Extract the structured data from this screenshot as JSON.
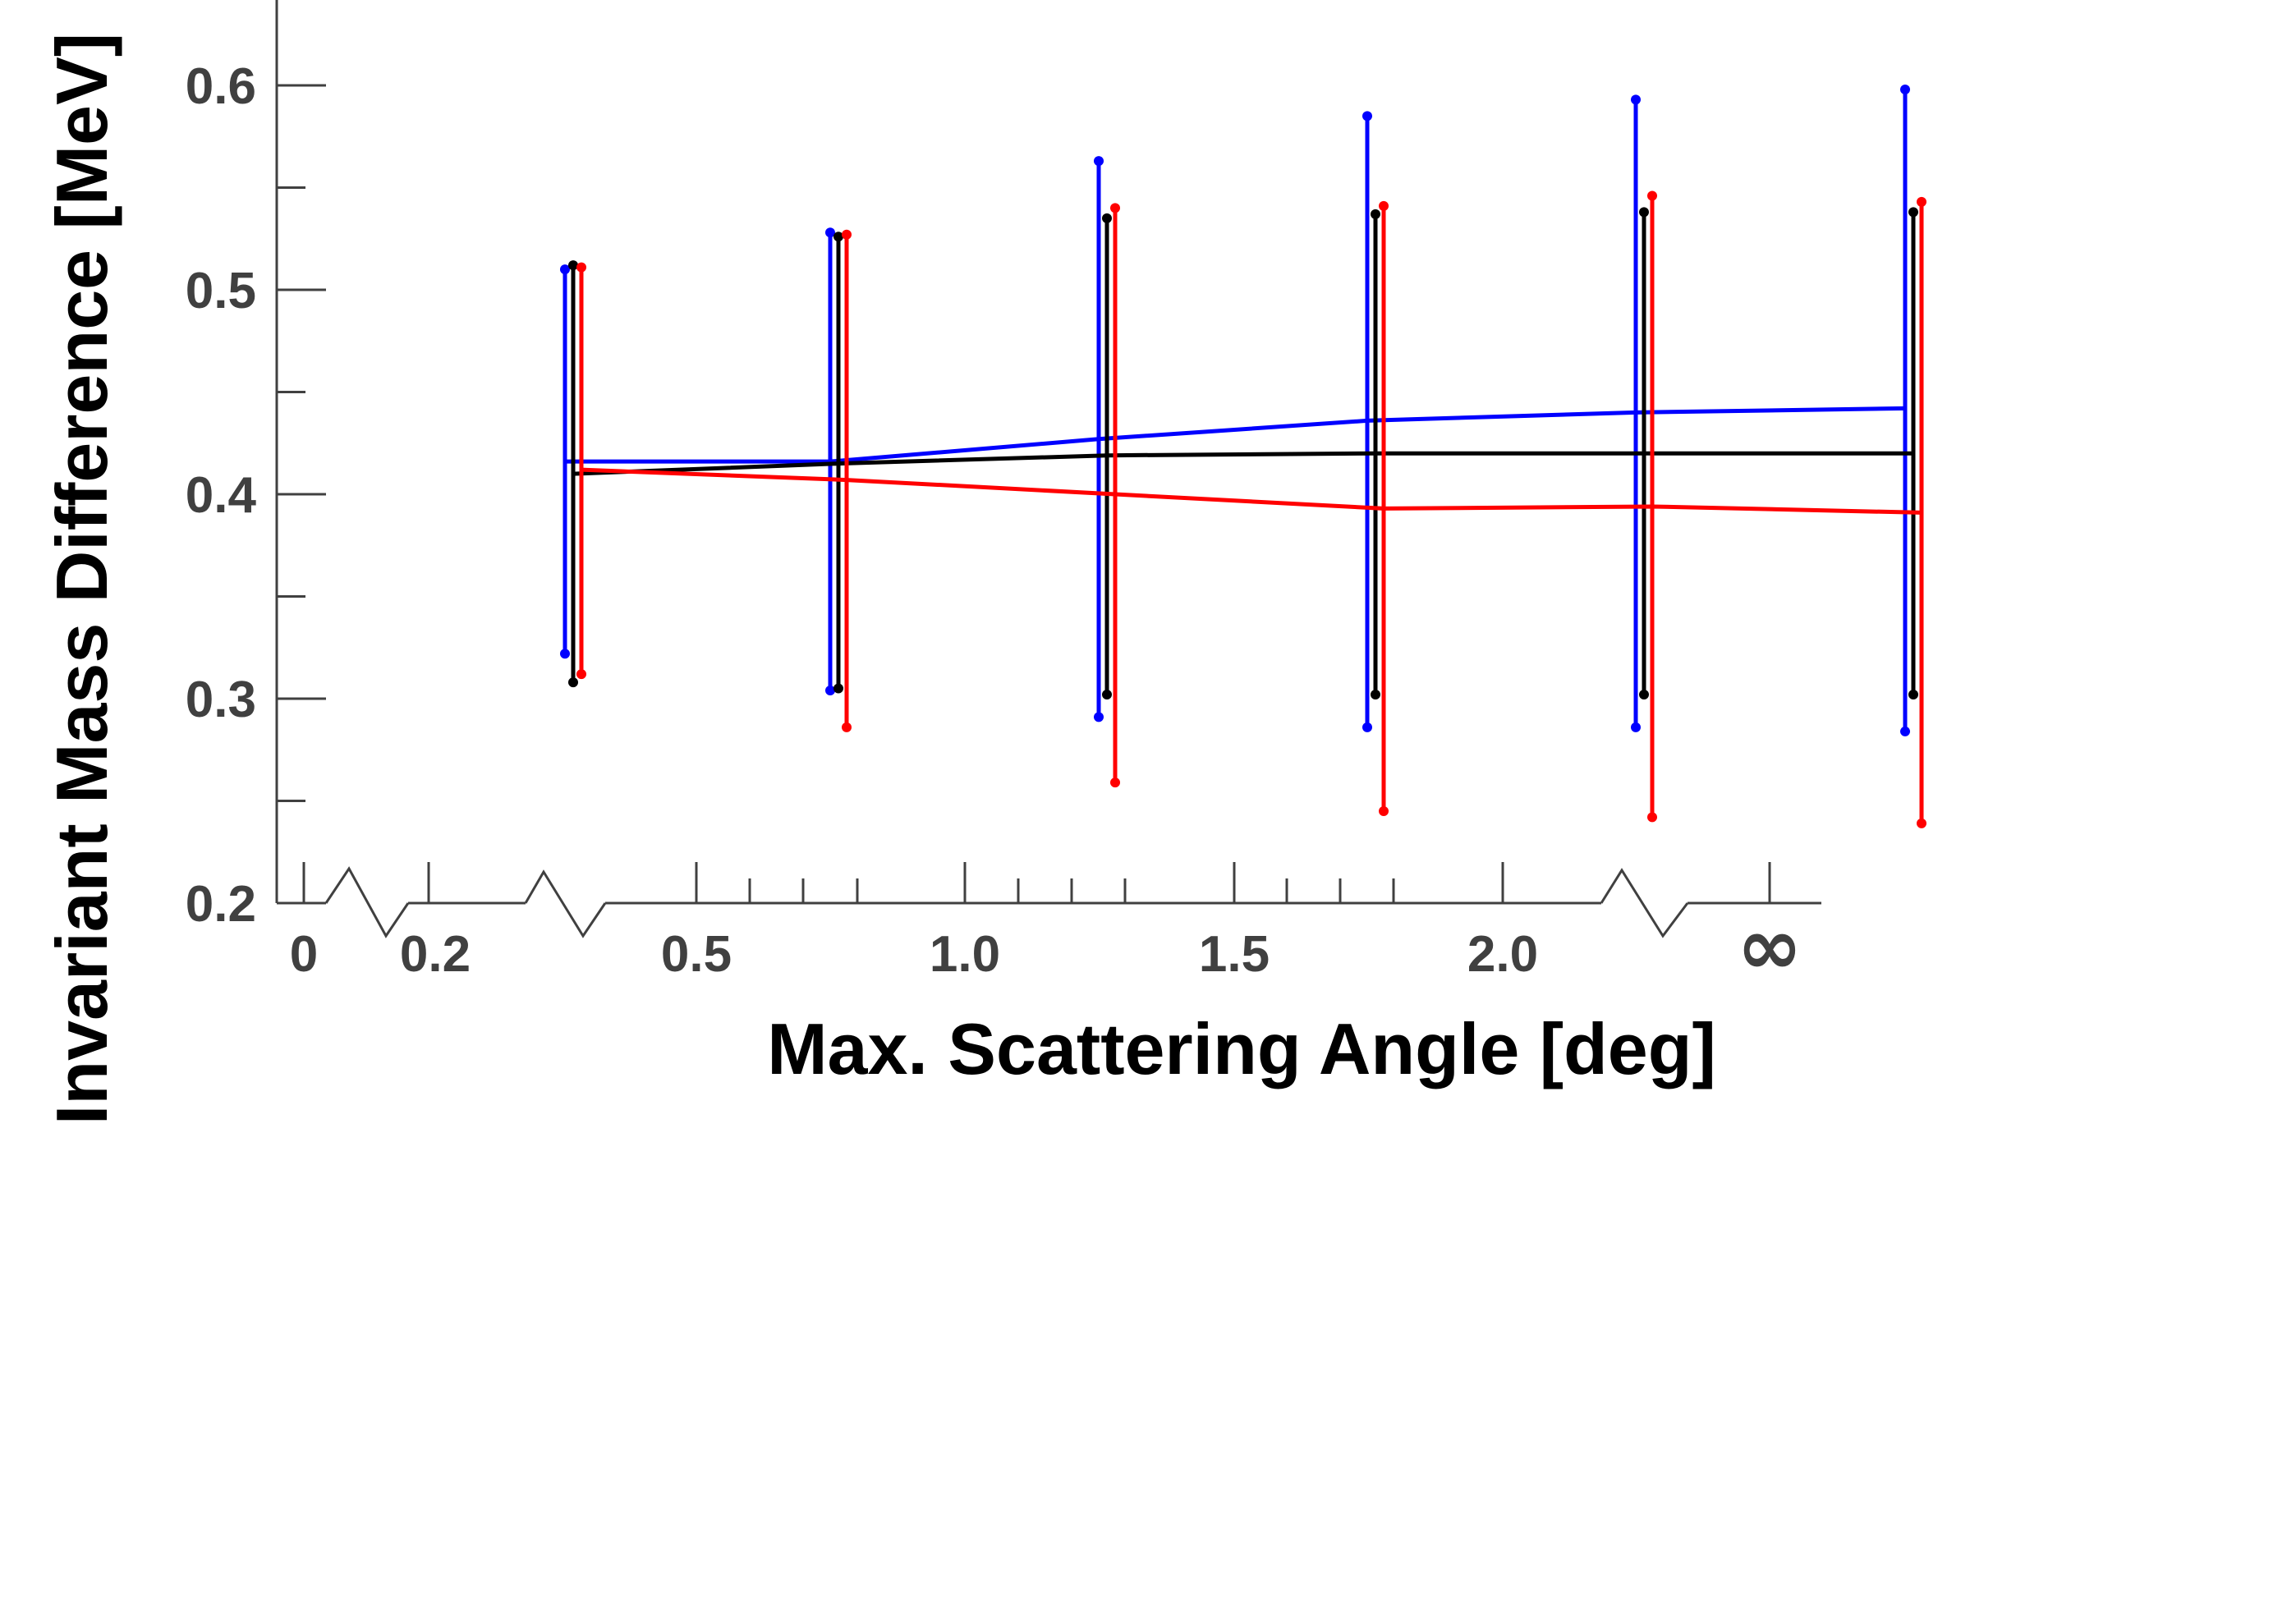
{
  "chart_data": {
    "type": "line",
    "title": "",
    "xlabel": "Max. Scattering Angle [deg]",
    "ylabel": "Invariant Mass Difference [MeV]",
    "ylim": [
      0.2,
      0.64
    ],
    "y_ticks": [
      "0.2",
      "0.3",
      "0.4",
      "0.5",
      "0.6"
    ],
    "x_axis": {
      "broken": true,
      "break_marks": 3,
      "ticks": [
        {
          "label": "0"
        },
        {
          "label": "0.2"
        },
        {
          "label": "0.5"
        },
        {
          "label": "1.0"
        },
        {
          "label": "1.5"
        },
        {
          "label": "2.0"
        },
        {
          "label": "∞"
        }
      ]
    },
    "categories": [
      "0.25",
      "0.75",
      "1.25",
      "1.75",
      "2.25",
      "∞"
    ],
    "grid": false,
    "legend": "none",
    "series": [
      {
        "color": "#0000ff",
        "values": [
          0.416,
          0.416,
          0.427,
          0.436,
          0.44,
          0.442
        ],
        "lower": [
          0.322,
          0.304,
          0.291,
          0.286,
          0.286,
          0.284
        ],
        "upper": [
          0.51,
          0.528,
          0.563,
          0.585,
          0.593,
          0.598
        ]
      },
      {
        "color": "#000000",
        "values": [
          0.41,
          0.415,
          0.419,
          0.42,
          0.42,
          0.42
        ],
        "lower": [
          0.308,
          0.305,
          0.302,
          0.302,
          0.302,
          0.302
        ],
        "upper": [
          0.512,
          0.526,
          0.535,
          0.537,
          0.538,
          0.538
        ]
      },
      {
        "color": "#ff0000",
        "values": [
          0.412,
          0.407,
          0.4,
          0.393,
          0.394,
          0.391
        ],
        "lower": [
          0.312,
          0.286,
          0.259,
          0.245,
          0.242,
          0.239
        ],
        "upper": [
          0.511,
          0.527,
          0.54,
          0.541,
          0.546,
          0.543
        ]
      }
    ]
  }
}
